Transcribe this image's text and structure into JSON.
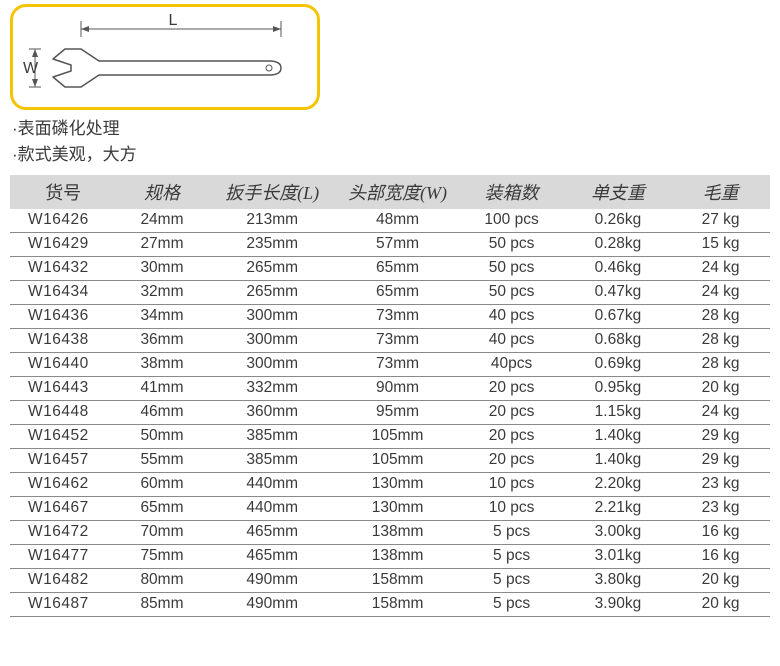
{
  "diagram": {
    "label_L": "L",
    "label_W": "W",
    "border_color": "#f5c400",
    "stroke_color": "#555555"
  },
  "notes": [
    "·表面磷化处理",
    "·款式美观，大方"
  ],
  "table": {
    "header_bg": "#d9d9d9",
    "row_border": "#8a8a8a",
    "text_color": "#3a3a3a",
    "columns": [
      "货号",
      "规格",
      "扳手长度(L)",
      "头部宽度(W)",
      "装箱数",
      "单支重",
      "毛重"
    ],
    "rows": [
      [
        "W16426",
        "24mm",
        "213mm",
        "48mm",
        "100 pcs",
        "0.26kg",
        "27 kg"
      ],
      [
        "W16429",
        "27mm",
        "235mm",
        "57mm",
        "50 pcs",
        "0.28kg",
        "15 kg"
      ],
      [
        "W16432",
        "30mm",
        "265mm",
        "65mm",
        "50 pcs",
        "0.46kg",
        "24 kg"
      ],
      [
        "W16434",
        "32mm",
        "265mm",
        "65mm",
        "50 pcs",
        "0.47kg",
        "24 kg"
      ],
      [
        "W16436",
        "34mm",
        "300mm",
        "73mm",
        "40 pcs",
        "0.67kg",
        "28 kg"
      ],
      [
        "W16438",
        "36mm",
        "300mm",
        "73mm",
        "40 pcs",
        "0.68kg",
        "28 kg"
      ],
      [
        "W16440",
        "38mm",
        "300mm",
        "73mm",
        "40pcs",
        "0.69kg",
        "28 kg"
      ],
      [
        "W16443",
        "41mm",
        "332mm",
        "90mm",
        "20 pcs",
        "0.95kg",
        "20 kg"
      ],
      [
        "W16448",
        "46mm",
        "360mm",
        "95mm",
        "20 pcs",
        "1.15kg",
        "24 kg"
      ],
      [
        "W16452",
        "50mm",
        "385mm",
        "105mm",
        "20 pcs",
        "1.40kg",
        "29 kg"
      ],
      [
        "W16457",
        "55mm",
        "385mm",
        "105mm",
        "20 pcs",
        "1.40kg",
        "29 kg"
      ],
      [
        "W16462",
        "60mm",
        "440mm",
        "130mm",
        "10 pcs",
        "2.20kg",
        "23 kg"
      ],
      [
        "W16467",
        "65mm",
        "440mm",
        "130mm",
        "10 pcs",
        "2.21kg",
        "23 kg"
      ],
      [
        "W16472",
        "70mm",
        "465mm",
        "138mm",
        "5 pcs",
        "3.00kg",
        "16 kg"
      ],
      [
        "W16477",
        "75mm",
        "465mm",
        "138mm",
        "5 pcs",
        "3.01kg",
        "16 kg"
      ],
      [
        "W16482",
        "80mm",
        "490mm",
        "158mm",
        "5 pcs",
        "3.80kg",
        "20 kg"
      ],
      [
        "W16487",
        "85mm",
        "490mm",
        "158mm",
        "5 pcs",
        "3.90kg",
        "20 kg"
      ]
    ]
  }
}
